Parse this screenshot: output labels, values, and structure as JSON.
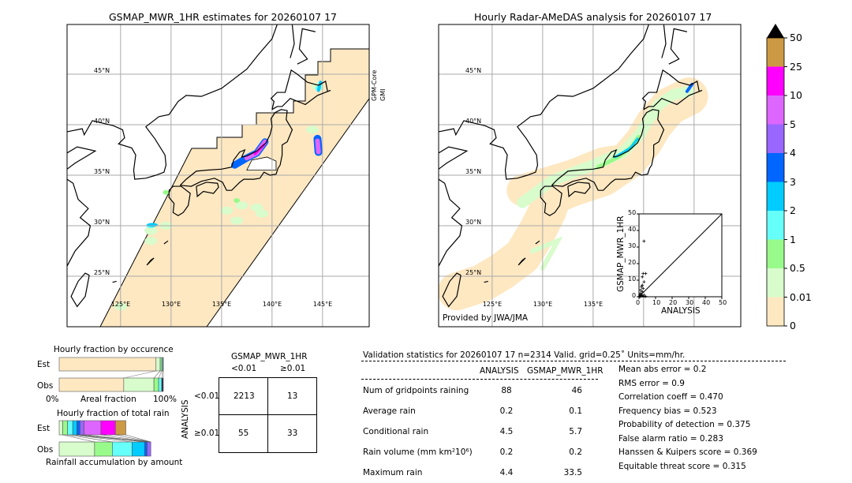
{
  "left_map": {
    "title": "GSMAP_MWR_1HR estimates for 20260107 17",
    "sensor_line1": "GPM-Core",
    "sensor_line2": "GMI"
  },
  "right_map": {
    "title": "Hourly Radar-AMeDAS analysis for 20260107 17",
    "credit": "Provided by JWA/JMA"
  },
  "lat_labels": [
    "45°N",
    "40°N",
    "35°N",
    "30°N",
    "25°N"
  ],
  "lon_labels": [
    "125°E",
    "130°E",
    "135°E",
    "140°E",
    "145°E"
  ],
  "colorbar": {
    "ticks": [
      "0",
      "0.01",
      "0.5",
      "1",
      "2",
      "3",
      "4",
      "5",
      "10",
      "25",
      "50"
    ],
    "colors": [
      "#fee8c2",
      "#d8fccb",
      "#98fa8a",
      "#66fffa",
      "#00ccff",
      "#0066ff",
      "#9966ff",
      "#dd66ff",
      "#ff00ff",
      "#cc9944"
    ],
    "extend_color": "#000000"
  },
  "scatter": {
    "xlabel": "ANALYSIS",
    "ylabel": "GSMAP_MWR_1HR",
    "ticks": [
      "0",
      "10",
      "20",
      "30",
      "40",
      "50"
    ],
    "xlim": [
      0,
      50
    ],
    "ylim": [
      0,
      50
    ],
    "points": [
      [
        3,
        33.5
      ],
      [
        2.5,
        14
      ],
      [
        4,
        14
      ],
      [
        2,
        12
      ],
      [
        3,
        9
      ],
      [
        2,
        7
      ],
      [
        1.5,
        6
      ],
      [
        2.5,
        5
      ],
      [
        1,
        4
      ],
      [
        2,
        3
      ],
      [
        1,
        2
      ],
      [
        0.5,
        1
      ],
      [
        1.5,
        1
      ],
      [
        3,
        1
      ],
      [
        0.5,
        0.3
      ],
      [
        1,
        0.2
      ],
      [
        2,
        0.5
      ],
      [
        3,
        0.3
      ],
      [
        4,
        0.2
      ],
      [
        0.2,
        0.1
      ]
    ]
  },
  "occurrence": {
    "title": "Hourly fraction by occurence",
    "est_label": "Est",
    "obs_label": "Obs",
    "xlabel": "Areal fraction",
    "x0": "0%",
    "x1": "100%",
    "est": [
      93,
      4,
      1.5,
      1,
      0.5
    ],
    "obs": [
      62,
      29,
      4.5,
      3,
      1.5
    ]
  },
  "total_rain": {
    "title": "Hourly fraction of total rain",
    "est_label": "Est",
    "obs_label": "Obs",
    "xlabel": "Rainfall accumulation by amount",
    "est": [
      3.5,
      4.5,
      5,
      4,
      3,
      4,
      16,
      14,
      10
    ],
    "obs": [
      34,
      17,
      19,
      12,
      2.5,
      3.5
    ]
  },
  "contingency": {
    "title": "GSMAP_MWR_1HR",
    "col1": "<0.01",
    "col2": "≥0.01",
    "row_axis": "ANALYSIS",
    "row1": "<0.01",
    "row2": "≥0.01",
    "cells": [
      "2213",
      "13",
      "55",
      "33"
    ]
  },
  "validation": {
    "header": "Validation statistics for 20260107 17  n=2314 Valid. grid=0.25˚ Units=mm/hr.",
    "col_analysis": "ANALYSIS",
    "col_gsmap": "GSMAP_MWR_1HR",
    "rows": [
      {
        "label": "Num of gridpoints raining",
        "a": "88",
        "g": "46"
      },
      {
        "label": "Average rain",
        "a": "0.2",
        "g": "0.1"
      },
      {
        "label": "Conditional rain",
        "a": "4.5",
        "g": "5.7"
      },
      {
        "label": "Rain volume (mm km²10⁶)",
        "a": "0.2",
        "g": "0.2"
      },
      {
        "label": "Maximum rain",
        "a": "4.4",
        "g": "33.5"
      }
    ],
    "scores": [
      "Mean abs error =    0.2",
      "RMS error =    0.9",
      "Correlation coeff =  0.470",
      "Frequency bias =  0.523",
      "Probability of detection =  0.375",
      "False alarm ratio =  0.283",
      "Hanssen & Kuipers score =  0.369",
      "Equitable threat score =  0.315"
    ]
  }
}
